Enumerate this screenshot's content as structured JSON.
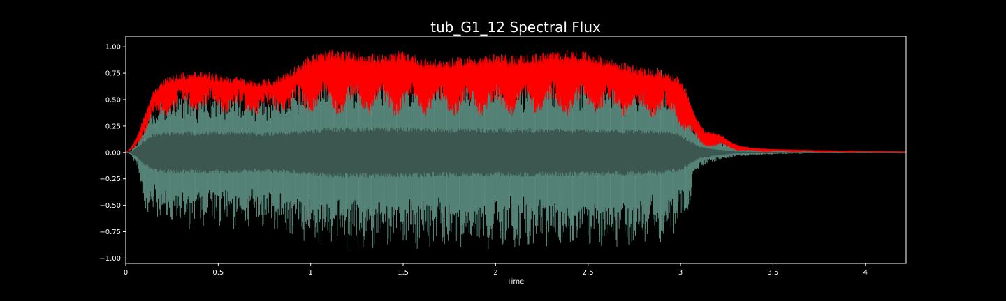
{
  "chart_data": {
    "type": "line",
    "title": "tub_G1_12 Spectral Flux",
    "xlabel": "Time",
    "ylabel": "",
    "xlim": [
      0,
      4.22
    ],
    "ylim": [
      -1.05,
      1.1
    ],
    "x_ticks": [
      0,
      0.5,
      1,
      1.5,
      2,
      2.5,
      3,
      3.5,
      4
    ],
    "x_tick_labels": [
      "0",
      "0.5",
      "1",
      "1.5",
      "2",
      "2.5",
      "3",
      "3.5",
      "4"
    ],
    "y_ticks": [
      1.0,
      0.75,
      0.5,
      0.25,
      0.0,
      -0.25,
      -0.5,
      -0.75,
      -1.0
    ],
    "y_tick_labels": [
      "1.00",
      "0.75",
      "0.50",
      "0.25",
      "0.00",
      "−0.25",
      "−0.50",
      "−0.75",
      "−1.00"
    ],
    "grid": false,
    "colors": {
      "background": "#000000",
      "axes": "#ffffff",
      "waveform_outer": "#5f9184",
      "waveform_inner": "#3b5750",
      "flux": "#ff0000"
    },
    "series": [
      {
        "kind": "waveform_envelope",
        "x": [
          0,
          0.03,
          0.06,
          0.1,
          0.15,
          0.25,
          0.4,
          0.5,
          0.7,
          0.8,
          0.9,
          1.0,
          1.1,
          1.3,
          1.5,
          1.7,
          2.0,
          2.2,
          2.5,
          2.7,
          2.9,
          3.0,
          3.05,
          3.1,
          3.2,
          3.3,
          3.5,
          3.7,
          4.0,
          4.22
        ],
        "upper": [
          0.0,
          0.02,
          0.1,
          0.3,
          0.55,
          0.6,
          0.62,
          0.63,
          0.63,
          0.65,
          0.72,
          0.82,
          0.88,
          0.9,
          0.9,
          0.88,
          0.88,
          0.86,
          0.85,
          0.84,
          0.82,
          0.7,
          0.45,
          0.25,
          0.15,
          0.06,
          0.03,
          0.02,
          0.01,
          0.005
        ],
        "lower": [
          0.0,
          -0.03,
          -0.15,
          -0.55,
          -0.68,
          -0.72,
          -0.74,
          -0.74,
          -0.72,
          -0.76,
          -0.82,
          -0.9,
          -0.93,
          -0.94,
          -0.93,
          -0.92,
          -0.93,
          -0.91,
          -0.92,
          -0.91,
          -0.86,
          -0.75,
          -0.5,
          -0.15,
          -0.08,
          -0.04,
          -0.02,
          -0.01,
          -0.005,
          -0.003
        ],
        "inner": [
          0.0,
          0.01,
          0.05,
          0.12,
          0.18,
          0.2,
          0.2,
          0.2,
          0.19,
          0.2,
          0.2,
          0.22,
          0.24,
          0.24,
          0.24,
          0.23,
          0.23,
          0.23,
          0.22,
          0.22,
          0.21,
          0.18,
          0.12,
          0.06,
          0.03,
          0.01,
          0.005,
          0.003,
          0.002,
          0.001
        ]
      },
      {
        "kind": "flux_band",
        "x": [
          0,
          0.03,
          0.06,
          0.1,
          0.15,
          0.2,
          0.3,
          0.4,
          0.5,
          0.6,
          0.7,
          0.8,
          0.9,
          1.0,
          1.1,
          1.2,
          1.3,
          1.4,
          1.5,
          1.6,
          1.7,
          1.8,
          1.9,
          2.0,
          2.1,
          2.2,
          2.3,
          2.4,
          2.5,
          2.6,
          2.7,
          2.8,
          2.9,
          2.98,
          3.03,
          3.08,
          3.13,
          3.18,
          3.22,
          3.26,
          3.32,
          3.4,
          3.5,
          3.6,
          3.8,
          4.0,
          4.22
        ],
        "high": [
          0.0,
          0.05,
          0.15,
          0.35,
          0.6,
          0.7,
          0.76,
          0.77,
          0.74,
          0.72,
          0.68,
          0.7,
          0.8,
          0.93,
          0.97,
          0.96,
          0.95,
          0.92,
          0.97,
          0.9,
          0.88,
          0.9,
          0.92,
          0.93,
          0.92,
          0.93,
          0.96,
          0.97,
          0.95,
          0.9,
          0.85,
          0.8,
          0.78,
          0.73,
          0.6,
          0.35,
          0.2,
          0.19,
          0.17,
          0.11,
          0.06,
          0.04,
          0.03,
          0.025,
          0.018,
          0.012,
          0.008
        ],
        "low": [
          0.0,
          0.02,
          0.08,
          0.18,
          0.33,
          0.38,
          0.44,
          0.45,
          0.43,
          0.42,
          0.4,
          0.42,
          0.43,
          0.44,
          0.42,
          0.41,
          0.42,
          0.4,
          0.41,
          0.4,
          0.41,
          0.4,
          0.4,
          0.41,
          0.4,
          0.41,
          0.4,
          0.4,
          0.41,
          0.4,
          0.4,
          0.4,
          0.38,
          0.34,
          0.18,
          0.08,
          0.06,
          0.06,
          0.05,
          0.04,
          0.02,
          0.01,
          0.01,
          0.008,
          0.005,
          0.003,
          0.002
        ]
      }
    ]
  }
}
